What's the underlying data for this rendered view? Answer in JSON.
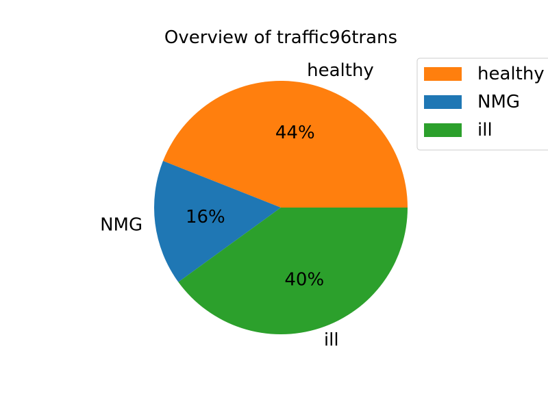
{
  "chart_data": {
    "type": "pie",
    "title": "Overview of traffic96trans",
    "start_angle_deg": 0,
    "direction": "counterclockwise",
    "legend_position": "top-right",
    "slices": [
      {
        "label": "healthy",
        "value": 44,
        "percent_label": "44%",
        "color": "#ff7f0e"
      },
      {
        "label": "NMG",
        "value": 16,
        "percent_label": "16%",
        "color": "#1f77b4"
      },
      {
        "label": "ill",
        "value": 40,
        "percent_label": "40%",
        "color": "#2ca02c"
      }
    ]
  }
}
